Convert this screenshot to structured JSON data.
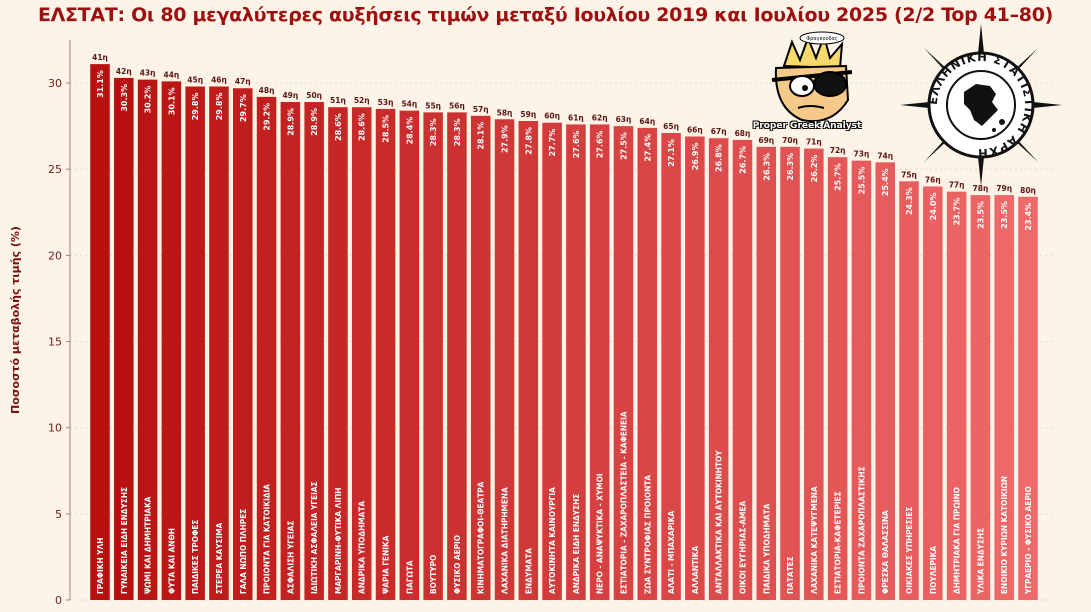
{
  "chart_data": {
    "type": "bar",
    "title": "ΕΛΣΤΑΤ: Οι 80 μεγαλύτερες αυξήσεις τιμών μεταξύ Ιουλίου 2019 και Ιουλίου 2025 (2/2 Top 41–80)",
    "ylabel": "Ποσοστό μεταβολής τιμής (%)",
    "xlabel": "",
    "ylim": [
      0,
      32.5
    ],
    "yticks": [
      0,
      5,
      10,
      15,
      20,
      25,
      30
    ],
    "grid": true,
    "color_start": "#b80f0f",
    "color_end": "#ef6a6a",
    "ranks": [
      "41η",
      "42η",
      "43η",
      "44η",
      "45η",
      "46η",
      "47η",
      "48η",
      "49η",
      "50η",
      "51η",
      "52η",
      "53η",
      "54η",
      "55η",
      "56η",
      "57η",
      "58η",
      "59η",
      "60η",
      "61η",
      "62η",
      "63η",
      "64η",
      "65η",
      "66η",
      "67η",
      "68η",
      "69η",
      "70η",
      "71η",
      "72η",
      "73η",
      "74η",
      "75η",
      "76η",
      "77η",
      "78η",
      "79η",
      "80η"
    ],
    "categories": [
      "ΓΡΑΦΙΚΗ ΥΛΗ",
      "ΓΥΝΑΙΚΕΙΑ ΕΙΔΗ ΕΝΔΥΣΗΣ",
      "ΨΩΜΙ ΚΑΙ ΔΗΜΗΤΡΙΑΚΑ",
      "ΦΥΤΑ ΚΑΙ ΑΝΘΗ",
      "ΠΑΙΔΙΚΕΣ ΤΡΟΦΕΣ",
      "ΣΤΕΡΕΑ ΚΑΥΣΙΜΑ",
      "ΓΑΛΑ ΝΩΠΟ ΠΛΗΡΕΣ",
      "ΠΡΟΙΟΝΤΑ ΓΙΑ ΚΑΤΟΙΚΙΔΙΑ",
      "ΑΣΦΑΛΙΣΗ ΥΓΕΙΑΣ",
      "ΙΔΙΩΤΙΚΗ ΑΣΦΑΛΕΙΑ ΥΓΕΙΑΣ",
      "ΜΑΡΓΑΡΙΝΗ-ΦΥΤΙΚΑ ΛΙΠΗ",
      "ΑΝΔΡΙΚΑ ΥΠΟΔΗΜΑΤΑ",
      "ΨΑΡΙΑ ΓΕΝΙΚΑ",
      "ΠΑΓΩΤΑ",
      "ΒΟΥΤΥΡΟ",
      "ΦΥΣΙΚΟ ΑΕΡΙΟ",
      "ΚΙΝΗΜΑΤΟΓΡΑΦΟΙ-ΘΕΑΤΡΑ",
      "ΛΑΧΑΝΙΚΑ ΔΙΑΤΗΡΗΜΕΝΑ",
      "ΕΝΔΥΜΑΤΑ",
      "ΑΥΤΟΚΙΝΗΤΑ ΚΑΙΝΟΥΡΓΙΑ",
      "ΑΝΔΡΙΚΑ ΕΙΔΗ ΕΝΔΥΣΗΣ",
      "ΝΕΡΟ - ΑΝΑΨΥΚΤΙΚΑ - ΧΥΜΟΙ",
      "ΕΣΤΙΑΤΟΡΙΑ - ΖΑΧΑΡΟΠΛΑΣΤΕΙΑ - ΚΑΦΕΝΕΙΑ",
      "ΖΩΑ ΣΥΝΤΡΟΦΙΑΣ ΠΡΟΙΟΝΤΑ",
      "ΑΛΑΤΙ - ΜΠΑΧΑΡΙΚΑ",
      "ΑΛΛΑΝΤΙΚΑ",
      "ΑΝΤΑΛΛΑΚΤΙΚΑ ΚΑΙ ΑΥΤΟΚΙΝΗΤΟΥ",
      "ΟΙΚΟΙ ΕΥΓΗΡΙΑΣ-ΑΜΕΑ",
      "ΠΑΙΔΙΚΑ ΥΠΟΔΗΜΑΤΑ",
      "ΠΑΤΑΤΕΣ",
      "ΛΑΧΑΝΙΚΑ ΚΑΤΕΨΥΓΜΕΝΑ",
      "ΕΣΤΙΑΤΟΡΙΑ-ΚΑΦΕΤΕΡΙΕΣ",
      "ΠΡΟΙΟΝΤΑ ΖΑΧΑΡΟΠΛΑΣΤΙΚΗΣ",
      "ΦΡΕΣΚΑ ΘΑΛΑΣΣΙΝΑ",
      "ΟΙΚΙΑΚΕΣ ΥΠΗΡΕΣΙΕΣ",
      "ΠΟΥΛΕΡΙΚΑ",
      "ΔΗΜΗΤΡΙΑΚΑ ΓΙΑ ΠΡΩΙΝΟ",
      "ΥΛΙΚΑ ΕΝΔΥΣΗΣ",
      "ΕΝΟΙΚΙΟ ΚΥΡΙΩΝ ΚΑΤΟΙΚΙΩΝ",
      "ΥΓΡΑΕΡΙΟ - ΦΥΣΙΚΟ ΑΕΡΙΟ"
    ],
    "values": [
      31.1,
      30.3,
      30.2,
      30.1,
      29.8,
      29.8,
      29.7,
      29.2,
      28.9,
      28.9,
      28.6,
      28.6,
      28.5,
      28.4,
      28.3,
      28.3,
      28.1,
      27.9,
      27.8,
      27.7,
      27.6,
      27.6,
      27.5,
      27.4,
      27.1,
      26.9,
      26.8,
      26.7,
      26.3,
      26.3,
      26.2,
      25.7,
      25.5,
      25.4,
      24.3,
      24.0,
      23.7,
      23.5,
      23.5,
      23.4
    ],
    "value_labels": [
      "31.1%",
      "30.3%",
      "30.2%",
      "30.1%",
      "29.8%",
      "29.8%",
      "29.7%",
      "29.2%",
      "28.9%",
      "28.9%",
      "28.6%",
      "28.6%",
      "28.5%",
      "28.4%",
      "28.3%",
      "28.3%",
      "28.1%",
      "27.9%",
      "27.8%",
      "27.7%",
      "27.6%",
      "27.6%",
      "27.5%",
      "27.4%",
      "27.1%",
      "26.9%",
      "26.8%",
      "26.7%",
      "26.3%",
      "26.3%",
      "26.2%",
      "25.7%",
      "25.5%",
      "25.4%",
      "24.3%",
      "24.0%",
      "23.7%",
      "23.5%",
      "23.5%",
      "23.4%"
    ]
  },
  "logos": {
    "analyst_caption": "Proper Greek Analyst",
    "analyst_badge": "Φραγκούδας",
    "elstat_text": "ΕΛΛΗΝΙΚΗ ΣΤΑΤΙΣΤΙΚΗ ΑΡΧΗ"
  }
}
